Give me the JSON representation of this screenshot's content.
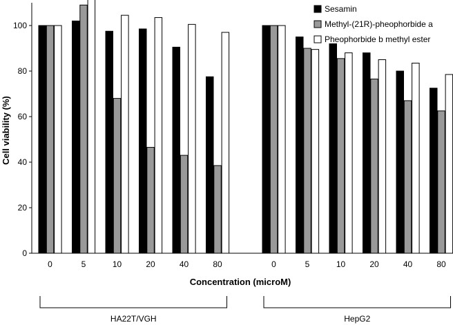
{
  "chart_data": {
    "type": "bar",
    "title": "",
    "xlabel": "Concentration (microM)",
    "ylabel": "Cell viability (%)",
    "ylim": [
      0,
      110
    ],
    "yticks": [
      0,
      20,
      40,
      60,
      80,
      100
    ],
    "legend_position": "top-right",
    "groups": [
      {
        "name": "HA22T/VGH",
        "categories": [
          "0",
          "5",
          "10",
          "20",
          "40",
          "80"
        ],
        "series": [
          {
            "name": "Sesamin",
            "color": "#000000",
            "values": [
              100,
              102,
              97.5,
              98.5,
              90.5,
              77.5
            ]
          },
          {
            "name": "Methyl-(21R)-pheophorbide a",
            "color": "#999999",
            "values": [
              100,
              109,
              68,
              46.5,
              43,
              38.5
            ]
          },
          {
            "name": "Pheophorbide b methyl ester",
            "color": "#ffffff",
            "values": [
              100,
              111.5,
              104.5,
              103.5,
              100.5,
              97
            ]
          }
        ]
      },
      {
        "name": "HepG2",
        "categories": [
          "0",
          "5",
          "10",
          "20",
          "40",
          "80"
        ],
        "series": [
          {
            "name": "Sesamin",
            "color": "#000000",
            "values": [
              100,
              95,
              92,
              88,
              80,
              72.5
            ]
          },
          {
            "name": "Methyl-(21R)-pheophorbide a",
            "color": "#999999",
            "values": [
              100,
              90,
              85.5,
              76.5,
              67,
              62.5
            ]
          },
          {
            "name": "Pheophorbide b methyl ester",
            "color": "#ffffff",
            "values": [
              100,
              89.5,
              88,
              85,
              83.5,
              78.5
            ]
          }
        ]
      }
    ]
  }
}
